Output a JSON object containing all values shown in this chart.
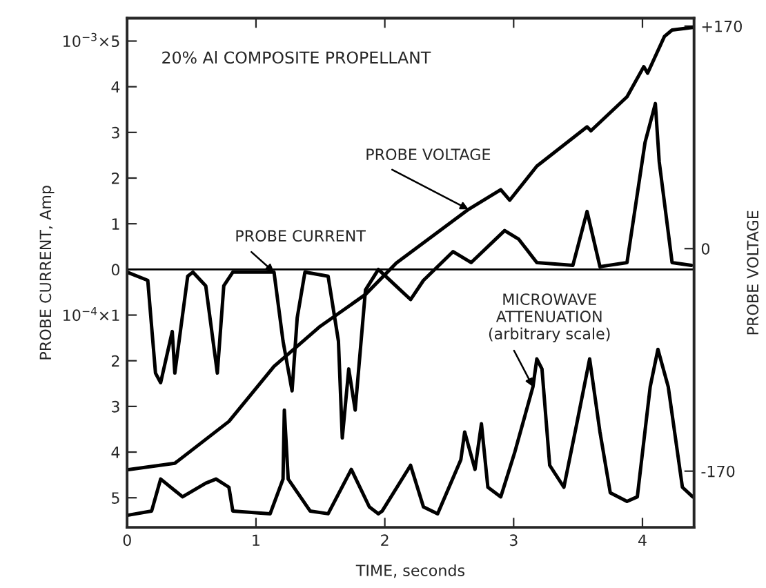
{
  "chart_data": {
    "type": "line",
    "title": "20% Al COMPOSITE PROPELLANT",
    "xlabel": "TIME, seconds",
    "ylabel": "PROBE CURRENT, Amp",
    "y2label": "PROBE VOLTAGE",
    "xlim": [
      0,
      4.4
    ],
    "xticks": [
      0,
      1,
      2,
      3,
      4
    ],
    "ylim": [
      -5.65,
      5.5
    ],
    "yticks": [
      {
        "value": 5,
        "label": "10$^{−3}$×5"
      },
      4,
      3,
      2,
      1,
      0,
      {
        "value": -1,
        "label": "10$^{−4}$×1"
      },
      {
        "value": -2,
        "label": "2"
      },
      {
        "value": -3,
        "label": "3"
      },
      {
        "value": -4,
        "label": "4"
      },
      {
        "value": -5,
        "label": "5"
      }
    ],
    "y2lim": [
      -213,
      176
    ],
    "y2ticks": [
      {
        "value": 170,
        "label": "+170"
      },
      0,
      {
        "value": -170,
        "label": "-170"
      }
    ],
    "grid": false,
    "legend": false,
    "marker": "none",
    "line_style": "solid",
    "ref_lines": [
      {
        "axis": "y",
        "value": 0,
        "color": "#000000"
      }
    ],
    "series": [
      {
        "name": "PROBE VOLTAGE",
        "color": "#000000",
        "axis": "y2",
        "x": [
          0,
          0.37,
          0.79,
          1.14,
          1.49,
          1.85,
          2.09,
          2.65,
          2.9,
          2.97,
          3.18,
          3.57,
          3.6,
          3.88,
          4.01,
          4.04,
          4.17,
          4.23,
          4.39
        ],
        "values": [
          -169,
          -164,
          -132,
          -90,
          -60,
          -35,
          -11,
          30,
          45,
          37,
          63,
          93,
          90,
          116,
          139,
          134,
          162,
          167,
          169
        ]
      },
      {
        "name": "PROBE CURRENT",
        "color": "#000000",
        "x": [
          0,
          0.16,
          0.22,
          0.26,
          0.35,
          0.37,
          0.47,
          0.51,
          0.61,
          0.7,
          0.75,
          0.82,
          1.14,
          1.21,
          1.28,
          1.32,
          1.38,
          1.56,
          1.64,
          1.67,
          1.72,
          1.77,
          1.85,
          1.95,
          2.12,
          2.2,
          2.3,
          2.53,
          2.67,
          2.93,
          3.04,
          3.18,
          3.46,
          3.57,
          3.67,
          3.88,
          4.02,
          4.1,
          4.13,
          4.23,
          4.38
        ],
        "values": [
          -0.06,
          -0.24,
          -2.27,
          -2.48,
          -1.36,
          -2.27,
          -0.15,
          -0.06,
          -0.36,
          -2.27,
          -0.36,
          -0.06,
          -0.06,
          -1.57,
          -2.66,
          -1.06,
          -0.06,
          -0.15,
          -1.57,
          -3.69,
          -2.18,
          -3.08,
          -0.45,
          0,
          -0.45,
          -0.66,
          -0.24,
          0.39,
          0.15,
          0.85,
          0.66,
          0.15,
          0.09,
          1.27,
          0.06,
          0.15,
          2.78,
          3.63,
          2.36,
          0.15,
          0.09
        ]
      },
      {
        "name": "MICROWAVE\nATTENUATION\n(arbitrary scale)",
        "color": "#000000",
        "x": [
          0.01,
          0.19,
          0.26,
          0.43,
          0.61,
          0.69,
          0.79,
          0.82,
          1.11,
          1.21,
          1.22,
          1.25,
          1.42,
          1.56,
          1.74,
          1.88,
          1.95,
          1.98,
          2.2,
          2.3,
          2.41,
          2.59,
          2.62,
          2.7,
          2.75,
          2.8,
          2.9,
          3.01,
          3.15,
          3.18,
          3.22,
          3.28,
          3.39,
          3.49,
          3.59,
          3.67,
          3.75,
          3.88,
          3.96,
          4.06,
          4.12,
          4.2,
          4.31,
          4.39
        ],
        "values": [
          -5.38,
          -5.29,
          -4.59,
          -4.98,
          -4.68,
          -4.59,
          -4.77,
          -5.29,
          -5.35,
          -4.59,
          -3.08,
          -4.59,
          -5.29,
          -5.35,
          -4.38,
          -5.2,
          -5.35,
          -5.29,
          -4.29,
          -5.2,
          -5.35,
          -4.17,
          -3.56,
          -4.38,
          -3.38,
          -4.77,
          -4.98,
          -3.99,
          -2.57,
          -1.96,
          -2.18,
          -4.29,
          -4.77,
          -3.38,
          -1.96,
          -3.56,
          -4.89,
          -5.08,
          -4.98,
          -2.57,
          -1.75,
          -2.57,
          -4.77,
          -4.98
        ]
      }
    ]
  }
}
